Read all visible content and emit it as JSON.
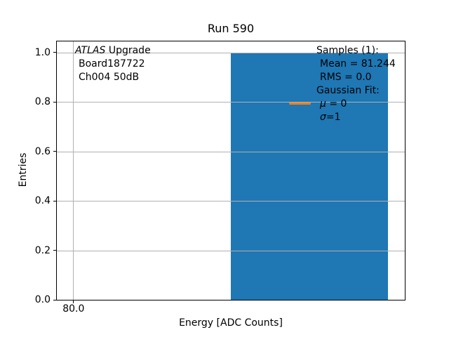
{
  "figure": {
    "title": "Run 590",
    "xlabel": "Energy [ADC Counts]",
    "ylabel": "Entries"
  },
  "annotations": {
    "left": {
      "experiment_italic": "ATLAS",
      "experiment_rest": " Upgrade",
      "board": "Board187722",
      "channel": "Ch004 50dB"
    },
    "right": {
      "samples_header": "Samples (1):",
      "mean": "Mean = 81.244",
      "rms": "RMS = 0.0",
      "fit_header": "Gaussian Fit:",
      "mu_symbol": "μ",
      "mu_rest": " = 0",
      "sigma_symbol": "σ",
      "sigma_rest": "=1"
    }
  },
  "colors": {
    "bar": "#1f77b4",
    "fit_line": "#ff7f0e",
    "grid": "#b0b0b0",
    "spine": "#000000"
  },
  "chart_data": {
    "type": "bar",
    "title": "Run 590",
    "xlabel": "Energy [ADC Counts]",
    "ylabel": "Entries",
    "ylim": [
      0,
      1.045
    ],
    "y_ticks": [
      0.0,
      0.2,
      0.4,
      0.6,
      0.8,
      1.0
    ],
    "x_ticks": [
      {
        "label": "80.0",
        "pos_frac": 0.048
      }
    ],
    "grid": true,
    "grid_above_data": true,
    "legend_position": "none",
    "series": [
      {
        "name": "Samples",
        "type": "histogram",
        "n_samples": 1,
        "mean": 81.244,
        "rms": 0.0,
        "color": "#1f77b4",
        "bars": [
          {
            "height": 1.0,
            "left_frac": 0.5,
            "width_frac": 0.4516
          }
        ]
      },
      {
        "name": "Gaussian Fit",
        "type": "line",
        "mu": 0,
        "sigma": 1,
        "color": "#ff7f0e"
      }
    ]
  }
}
